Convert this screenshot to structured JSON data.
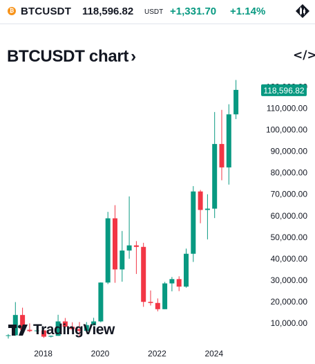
{
  "header": {
    "coin_glyph": "₿",
    "symbol": "BTCUSDT",
    "price": "118,596.82",
    "unit": "USDT",
    "change": "+1,331.70",
    "change_percent": "+1.14%",
    "positive_color": "#089981"
  },
  "title": {
    "text": "BTCUSDT chart",
    "arrow": "›",
    "embed_glyph": "</>"
  },
  "watermark": {
    "brand": "TradingView"
  },
  "price_label": "118,596.82",
  "chart_data": {
    "type": "candlestick",
    "interval": "quarterly",
    "colors": {
      "up": "#089981",
      "down": "#f23645"
    },
    "ylim": [
      0,
      125000
    ],
    "yticks": [
      "10,000.00",
      "20,000.00",
      "30,000.00",
      "40,000.00",
      "50,000.00",
      "60,000.00",
      "70,000.00",
      "80,000.00",
      "90,000.00",
      "100,000.00",
      "110,000.00",
      "120,000.00"
    ],
    "xticks": [
      "2018",
      "2020",
      "2022",
      "2024"
    ],
    "last_price": 118596.82,
    "candles": [
      {
        "t": "2017-Q3",
        "o": 4300,
        "h": 4900,
        "l": 2800,
        "c": 4350
      },
      {
        "t": "2017-Q4",
        "o": 4350,
        "h": 19800,
        "l": 4100,
        "c": 13800
      },
      {
        "t": "2018-Q1",
        "o": 13800,
        "h": 17200,
        "l": 5900,
        "c": 6900
      },
      {
        "t": "2018-Q2",
        "o": 6900,
        "h": 9900,
        "l": 5800,
        "c": 6300
      },
      {
        "t": "2018-Q3",
        "o": 6300,
        "h": 8500,
        "l": 5900,
        "c": 6600
      },
      {
        "t": "2018-Q4",
        "o": 6600,
        "h": 6900,
        "l": 3150,
        "c": 3700
      },
      {
        "t": "2019-Q1",
        "o": 3700,
        "h": 4200,
        "l": 3350,
        "c": 4100
      },
      {
        "t": "2019-Q2",
        "o": 4100,
        "h": 13900,
        "l": 4050,
        "c": 10800
      },
      {
        "t": "2019-Q3",
        "o": 10800,
        "h": 12400,
        "l": 7700,
        "c": 8300
      },
      {
        "t": "2019-Q4",
        "o": 8300,
        "h": 10400,
        "l": 6500,
        "c": 7200
      },
      {
        "t": "2020-Q1",
        "o": 7200,
        "h": 10500,
        "l": 3800,
        "c": 6400
      },
      {
        "t": "2020-Q2",
        "o": 6400,
        "h": 10500,
        "l": 6200,
        "c": 9100
      },
      {
        "t": "2020-Q3",
        "o": 9100,
        "h": 12500,
        "l": 8900,
        "c": 10800
      },
      {
        "t": "2020-Q4",
        "o": 10800,
        "h": 29000,
        "l": 10400,
        "c": 28900
      },
      {
        "t": "2021-Q1",
        "o": 28900,
        "h": 61800,
        "l": 28200,
        "c": 58800
      },
      {
        "t": "2021-Q2",
        "o": 58800,
        "h": 64900,
        "l": 28800,
        "c": 35000
      },
      {
        "t": "2021-Q3",
        "o": 35000,
        "h": 52900,
        "l": 29300,
        "c": 43800
      },
      {
        "t": "2021-Q4",
        "o": 43800,
        "h": 69000,
        "l": 40000,
        "c": 46200
      },
      {
        "t": "2022-Q1",
        "o": 46200,
        "h": 48200,
        "l": 32900,
        "c": 45500
      },
      {
        "t": "2022-Q2",
        "o": 45500,
        "h": 47400,
        "l": 17600,
        "c": 19900
      },
      {
        "t": "2022-Q3",
        "o": 19900,
        "h": 25200,
        "l": 18200,
        "c": 19400
      },
      {
        "t": "2022-Q4",
        "o": 19400,
        "h": 21500,
        "l": 15500,
        "c": 16500
      },
      {
        "t": "2023-Q1",
        "o": 16500,
        "h": 29200,
        "l": 16500,
        "c": 28500
      },
      {
        "t": "2023-Q2",
        "o": 28500,
        "h": 31500,
        "l": 24800,
        "c": 30500
      },
      {
        "t": "2023-Q3",
        "o": 30500,
        "h": 31800,
        "l": 24900,
        "c": 27000
      },
      {
        "t": "2023-Q4",
        "o": 27000,
        "h": 44700,
        "l": 26500,
        "c": 42300
      },
      {
        "t": "2024-Q1",
        "o": 42300,
        "h": 73800,
        "l": 38500,
        "c": 71300
      },
      {
        "t": "2024-Q2",
        "o": 71300,
        "h": 72000,
        "l": 56500,
        "c": 62700
      },
      {
        "t": "2024-Q3",
        "o": 62700,
        "h": 70000,
        "l": 49000,
        "c": 63300
      },
      {
        "t": "2024-Q4",
        "o": 63300,
        "h": 108300,
        "l": 58900,
        "c": 93400
      },
      {
        "t": "2025-Q1",
        "o": 93400,
        "h": 109300,
        "l": 76500,
        "c": 82500
      },
      {
        "t": "2025-Q2",
        "o": 82500,
        "h": 111900,
        "l": 74500,
        "c": 107200
      },
      {
        "t": "2025-Q3",
        "o": 107200,
        "h": 123200,
        "l": 105000,
        "c": 118596.82
      }
    ]
  }
}
